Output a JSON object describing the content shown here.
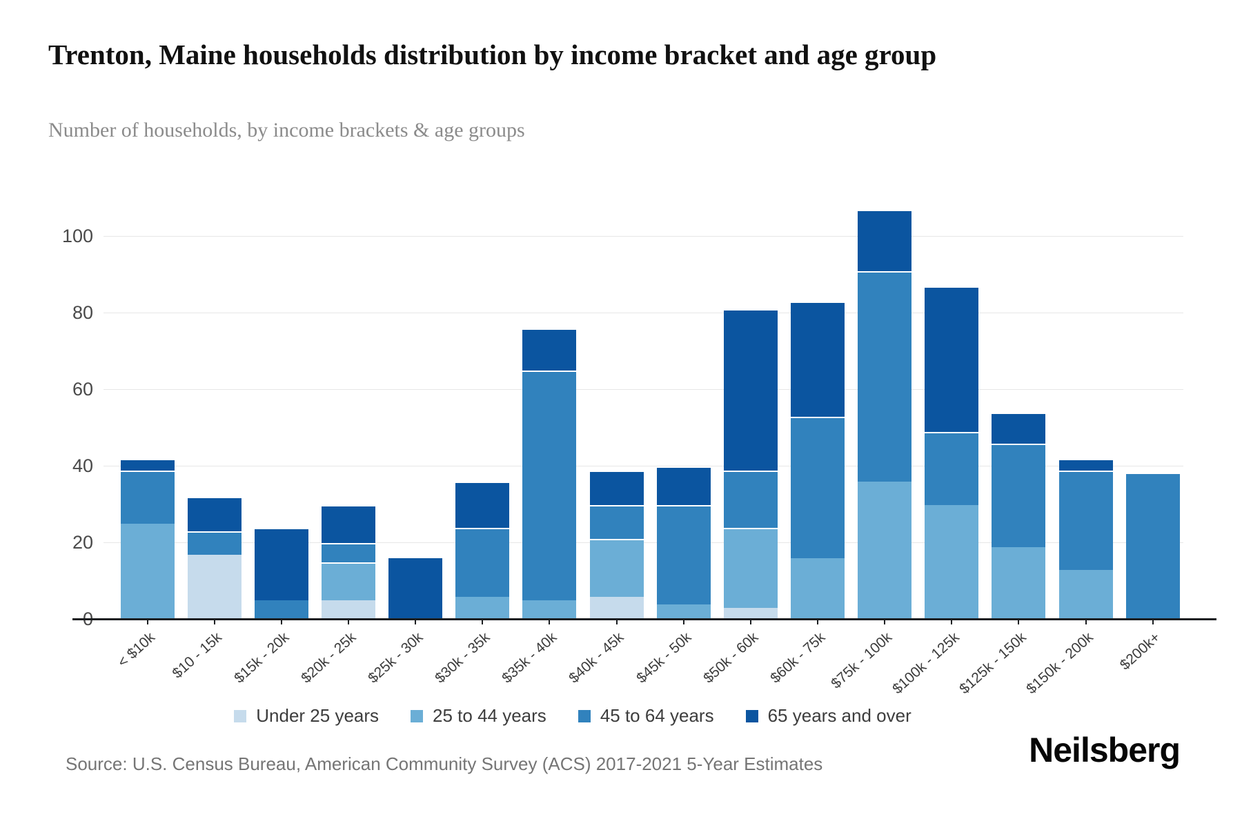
{
  "header": {
    "title": "Trenton, Maine households distribution by income bracket and age group",
    "subtitle": "Number of households, by income brackets & age groups"
  },
  "footer": {
    "source": "Source: U.S. Census Bureau, American Community Survey (ACS) 2017-2021 5-Year Estimates",
    "logo": "Neilsberg"
  },
  "chart_data": {
    "type": "bar",
    "stacked": true,
    "title": "Trenton, Maine households distribution by income bracket and age group",
    "xlabel": "",
    "ylabel": "Number of households",
    "ylim": [
      0,
      110
    ],
    "y_ticks": [
      0,
      20,
      40,
      60,
      80,
      100
    ],
    "grid": "horizontal",
    "legend_position": "bottom",
    "categories": [
      "< $10k",
      "$10 - 15k",
      "$15k - 20k",
      "$20k - 25k",
      "$25k - 30k",
      "$30k - 35k",
      "$35k - 40k",
      "$40k - 45k",
      "$45k - 50k",
      "$50k - 60k",
      "$60k - 75k",
      "$75k - 100k",
      "$100k - 125k",
      "$125k - 150k",
      "$150k - 200k",
      "$200k+"
    ],
    "series": [
      {
        "name": "Under 25 years",
        "color": "#c6dbec",
        "values": [
          0,
          17,
          0,
          5,
          0,
          0,
          0,
          6,
          0,
          3,
          0,
          0,
          0,
          0,
          0,
          0
        ]
      },
      {
        "name": "25 to 44 years",
        "color": "#6baed6",
        "values": [
          25,
          0,
          0,
          10,
          0,
          6,
          5,
          15,
          4,
          21,
          16,
          36,
          30,
          19,
          13,
          0
        ]
      },
      {
        "name": "45 to 64 years",
        "color": "#3182bd",
        "values": [
          14,
          6,
          5,
          5,
          0,
          18,
          60,
          9,
          26,
          15,
          37,
          55,
          19,
          27,
          26,
          38
        ]
      },
      {
        "name": "65 years and over",
        "color": "#0b55a0",
        "values": [
          3,
          9,
          19,
          10,
          16,
          12,
          11,
          9,
          10,
          42,
          30,
          16,
          38,
          8,
          3,
          0
        ]
      }
    ],
    "totals": [
      42,
      32,
      24,
      30,
      16,
      36,
      76,
      39,
      40,
      81,
      83,
      107,
      87,
      54,
      42,
      38
    ]
  }
}
